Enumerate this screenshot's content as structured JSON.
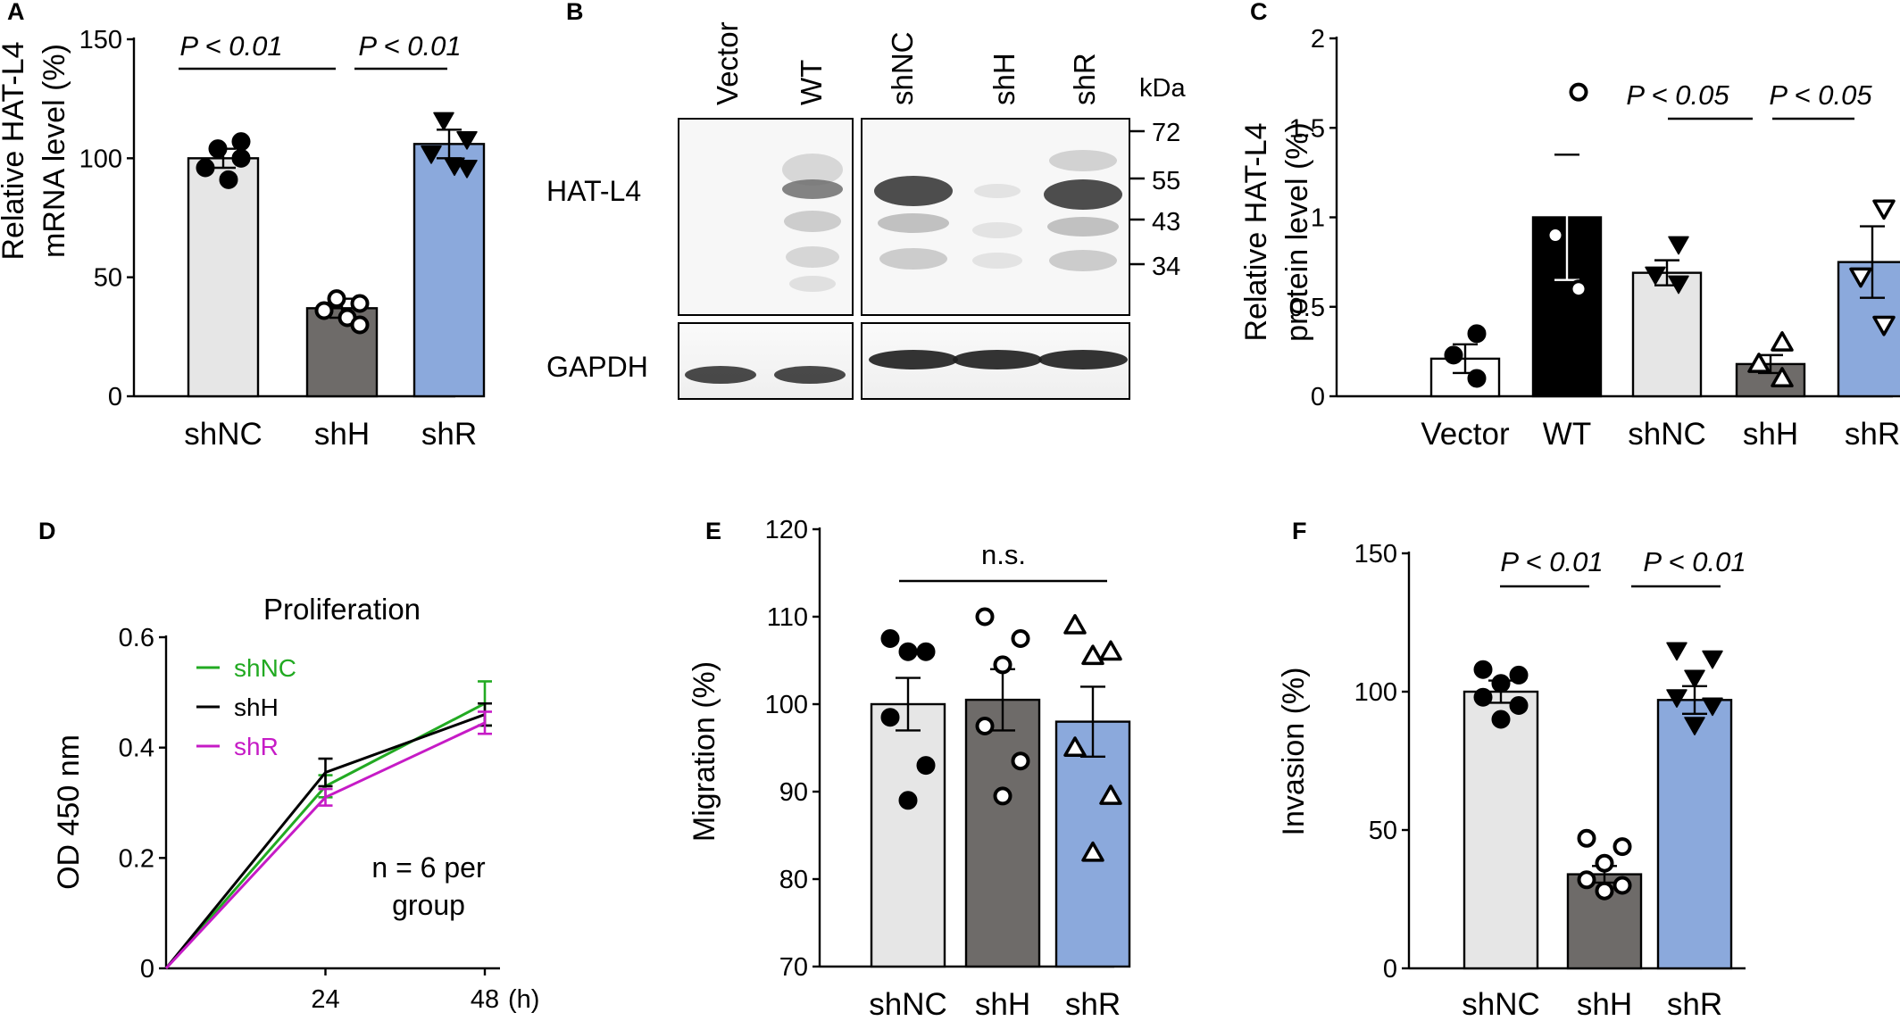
{
  "colors": {
    "shNC_bar": "#e6e6e6",
    "shH_bar": "#6e6b69",
    "shR_bar": "#8ba9dc",
    "WT_bar": "#000000",
    "vector_bar": "#ffffff",
    "line_shNC": "#22aa22",
    "line_shH": "#000000",
    "line_shR": "#c61bc6"
  },
  "panels": {
    "A": {
      "letter": "A",
      "ylabel_line1": "Relative HAT-L4",
      "ylabel_line2": "mRNA level (%)",
      "sig1": "P < 0.01",
      "sig2": "P < 0.01"
    },
    "B": {
      "letter": "B",
      "lanes": [
        "Vector",
        "WT",
        "shNC",
        "shH",
        "shR"
      ],
      "unit": "kDa",
      "markers": [
        "72",
        "55",
        "43",
        "34"
      ],
      "row1": "HAT-L4",
      "row2": "GAPDH"
    },
    "C": {
      "letter": "C",
      "ylabel_line1": "Relative HAT-L4",
      "ylabel_line2": "protein level (%)",
      "sig1": "P < 0.05",
      "sig2": "P < 0.05"
    },
    "D": {
      "letter": "D",
      "title": "Proliferation",
      "ylabel": "OD 450 nm",
      "x_unit": "(h)",
      "note_line1": "n = 6 per",
      "note_line2": "group"
    },
    "E": {
      "letter": "E",
      "ylabel": "Migration (%)",
      "sig": "n.s."
    },
    "F": {
      "letter": "F",
      "ylabel": "Invasion (%)",
      "sig1": "P < 0.01",
      "sig2": "P < 0.01"
    }
  },
  "chart_data": [
    {
      "panel": "A",
      "type": "bar",
      "categories": [
        "shNC",
        "shH",
        "shR"
      ],
      "values": [
        100,
        37,
        106
      ],
      "sem": [
        4,
        4,
        6
      ],
      "ylim": [
        0,
        150
      ],
      "yticks": [
        0,
        50,
        100,
        150
      ],
      "points": [
        [
          104,
          100,
          96,
          91,
          107
        ],
        [
          41,
          39,
          36,
          33,
          30
        ],
        [
          116,
          108,
          102,
          97,
          96
        ]
      ],
      "markers": [
        "filled-circle",
        "open-circle",
        "filled-triangle-down"
      ]
    },
    {
      "panel": "C",
      "type": "bar",
      "categories": [
        "Vector",
        "WT",
        "shNC",
        "shH",
        "shR"
      ],
      "values": [
        0.21,
        1.0,
        0.69,
        0.18,
        0.75
      ],
      "sem": [
        0.08,
        0.35,
        0.07,
        0.05,
        0.2
      ],
      "ylim": [
        0,
        2
      ],
      "yticks": [
        0,
        0.5,
        1,
        1.5,
        2
      ],
      "points": [
        [
          0.35,
          0.23,
          0.1
        ],
        [
          1.7,
          0.9,
          0.6
        ],
        [
          0.85,
          0.68,
          0.63
        ],
        [
          0.3,
          0.18,
          0.1
        ],
        [
          1.05,
          0.67,
          0.4
        ]
      ],
      "markers": [
        "filled-circle",
        "open-circle",
        "filled-triangle-down",
        "open-triangle-up",
        "open-triangle-down"
      ]
    },
    {
      "panel": "D",
      "type": "line",
      "x": [
        0,
        24,
        48
      ],
      "xticks": [
        24,
        48
      ],
      "ylim": [
        0,
        0.6
      ],
      "yticks": [
        0,
        0.2,
        0.4,
        0.6
      ],
      "series": [
        {
          "name": "shNC",
          "values": [
            0,
            0.33,
            0.48
          ],
          "err": [
            0,
            0.02,
            0.04
          ]
        },
        {
          "name": "shH",
          "values": [
            0,
            0.355,
            0.46
          ],
          "err": [
            0,
            0.025,
            0.02
          ]
        },
        {
          "name": "shR",
          "values": [
            0,
            0.31,
            0.445
          ],
          "err": [
            0,
            0.015,
            0.02
          ]
        }
      ]
    },
    {
      "panel": "E",
      "type": "bar",
      "categories": [
        "shNC",
        "shH",
        "shR"
      ],
      "values": [
        100,
        100.5,
        98
      ],
      "sem": [
        3,
        3.5,
        4
      ],
      "ylim": [
        70,
        120
      ],
      "yticks": [
        70,
        80,
        90,
        100,
        110,
        120
      ],
      "points": [
        [
          107.5,
          106,
          106,
          98.5,
          93,
          89
        ],
        [
          110,
          107.5,
          104.5,
          97.5,
          93.5,
          89.5
        ],
        [
          109,
          106,
          105.5,
          95,
          89.5,
          83
        ]
      ],
      "markers": [
        "filled-circle",
        "open-circle",
        "open-triangle-up"
      ]
    },
    {
      "panel": "F",
      "type": "bar",
      "categories": [
        "shNC",
        "shH",
        "shR"
      ],
      "values": [
        100,
        34,
        97
      ],
      "sem": [
        4,
        3,
        5
      ],
      "ylim": [
        0,
        150
      ],
      "yticks": [
        0,
        50,
        100,
        150
      ],
      "points": [
        [
          108,
          106,
          103,
          98,
          95,
          90
        ],
        [
          47,
          44,
          38,
          32,
          30,
          28
        ],
        [
          115,
          112,
          105,
          98,
          95,
          88
        ]
      ],
      "markers": [
        "filled-circle",
        "open-circle",
        "filled-triangle-down"
      ]
    }
  ]
}
